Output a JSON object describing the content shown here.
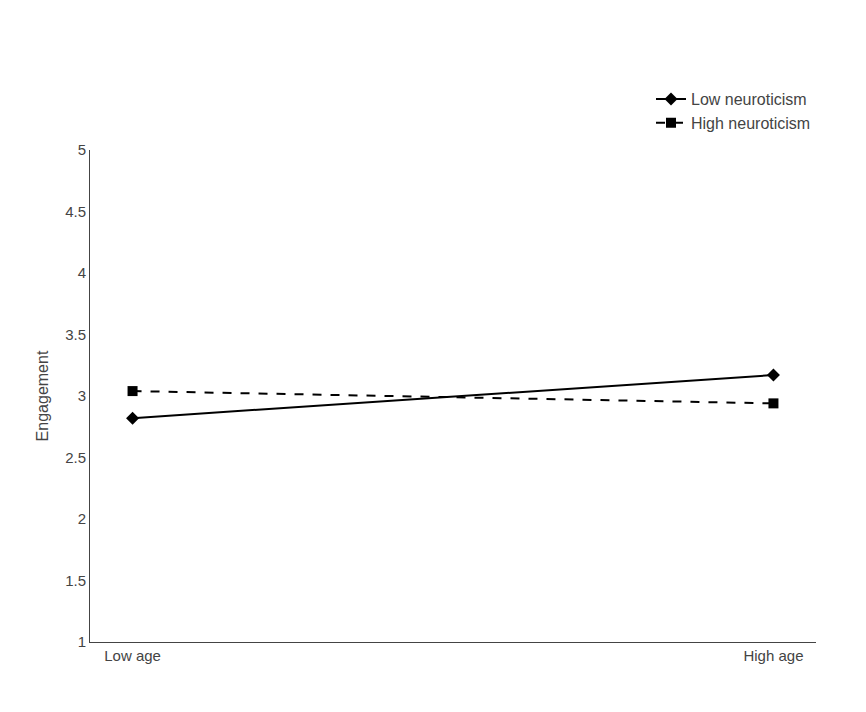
{
  "chart_data": {
    "type": "line",
    "categories": [
      "Low age",
      "High age"
    ],
    "series": [
      {
        "name": "Low neuroticism",
        "color": "#000000",
        "values": [
          2.82,
          3.17
        ],
        "marker": "diamond",
        "line_style": "solid"
      },
      {
        "name": "High neuroticism",
        "color": "#000000",
        "values": [
          3.04,
          2.94
        ],
        "marker": "square",
        "line_style": "dash"
      }
    ],
    "ylabel": "Engagement",
    "ylim": [
      1,
      5
    ],
    "yticks": [
      1,
      1.5,
      2,
      2.5,
      3,
      3.5,
      4,
      4.5,
      5
    ],
    "grid": false,
    "legend": "upper right"
  }
}
